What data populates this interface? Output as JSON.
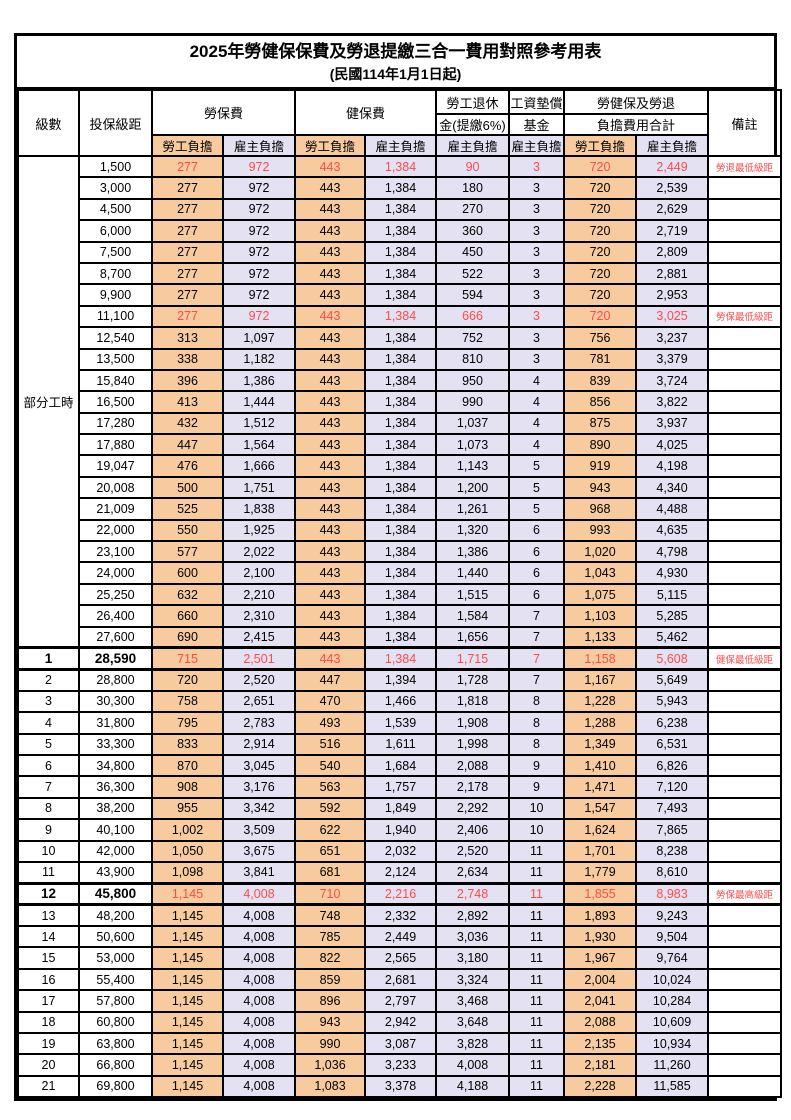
{
  "title": "2025年勞健保保費及勞退提繳三合一費用對照參考用表",
  "subtitle": "(民國114年1月1日起)",
  "colors": {
    "employee_bg": "#F8CB9E",
    "employer_bg": "#E4E2F2",
    "highlight_red": "#FF4A4A",
    "border": "#000000"
  },
  "table": {
    "header": {
      "level": "級數",
      "insured_range": "投保級距",
      "labor_fee": "勞保費",
      "health_fee": "健保費",
      "pension_line1": "勞工退休",
      "pension_line2": "金(提繳6%)",
      "wage_fund_line1": "工資墊償",
      "wage_fund_line2": "基金",
      "total_line1": "勞健保及勞退",
      "total_line2": "負擔費用合計",
      "remarks": "備註",
      "employee_share": "勞工負擔",
      "employer_share": "雇主負擔"
    },
    "part_time_label": "部分工時",
    "part_time_span": 23,
    "rows": [
      {
        "level": "",
        "salary": "1,500",
        "labor_emp": "277",
        "labor_er": "972",
        "health_emp": "443",
        "health_er": "1,384",
        "pension_er": "90",
        "fund_er": "3",
        "total_emp": "720",
        "total_er": "2,449",
        "note": "勞退最低級距",
        "hl": true,
        "em": false
      },
      {
        "level": "",
        "salary": "3,000",
        "labor_emp": "277",
        "labor_er": "972",
        "health_emp": "443",
        "health_er": "1,384",
        "pension_er": "180",
        "fund_er": "3",
        "total_emp": "720",
        "total_er": "2,539",
        "note": "",
        "hl": false,
        "em": false
      },
      {
        "level": "",
        "salary": "4,500",
        "labor_emp": "277",
        "labor_er": "972",
        "health_emp": "443",
        "health_er": "1,384",
        "pension_er": "270",
        "fund_er": "3",
        "total_emp": "720",
        "total_er": "2,629",
        "note": "",
        "hl": false,
        "em": false
      },
      {
        "level": "",
        "salary": "6,000",
        "labor_emp": "277",
        "labor_er": "972",
        "health_emp": "443",
        "health_er": "1,384",
        "pension_er": "360",
        "fund_er": "3",
        "total_emp": "720",
        "total_er": "2,719",
        "note": "",
        "hl": false,
        "em": false
      },
      {
        "level": "",
        "salary": "7,500",
        "labor_emp": "277",
        "labor_er": "972",
        "health_emp": "443",
        "health_er": "1,384",
        "pension_er": "450",
        "fund_er": "3",
        "total_emp": "720",
        "total_er": "2,809",
        "note": "",
        "hl": false,
        "em": false
      },
      {
        "level": "",
        "salary": "8,700",
        "labor_emp": "277",
        "labor_er": "972",
        "health_emp": "443",
        "health_er": "1,384",
        "pension_er": "522",
        "fund_er": "3",
        "total_emp": "720",
        "total_er": "2,881",
        "note": "",
        "hl": false,
        "em": false
      },
      {
        "level": "",
        "salary": "9,900",
        "labor_emp": "277",
        "labor_er": "972",
        "health_emp": "443",
        "health_er": "1,384",
        "pension_er": "594",
        "fund_er": "3",
        "total_emp": "720",
        "total_er": "2,953",
        "note": "",
        "hl": false,
        "em": false
      },
      {
        "level": "",
        "salary": "11,100",
        "labor_emp": "277",
        "labor_er": "972",
        "health_emp": "443",
        "health_er": "1,384",
        "pension_er": "666",
        "fund_er": "3",
        "total_emp": "720",
        "total_er": "3,025",
        "note": "勞保最低級距",
        "hl": true,
        "em": false
      },
      {
        "level": "",
        "salary": "12,540",
        "labor_emp": "313",
        "labor_er": "1,097",
        "health_emp": "443",
        "health_er": "1,384",
        "pension_er": "752",
        "fund_er": "3",
        "total_emp": "756",
        "total_er": "3,237",
        "note": "",
        "hl": false,
        "em": false
      },
      {
        "level": "",
        "salary": "13,500",
        "labor_emp": "338",
        "labor_er": "1,182",
        "health_emp": "443",
        "health_er": "1,384",
        "pension_er": "810",
        "fund_er": "3",
        "total_emp": "781",
        "total_er": "3,379",
        "note": "",
        "hl": false,
        "em": false
      },
      {
        "level": "",
        "salary": "15,840",
        "labor_emp": "396",
        "labor_er": "1,386",
        "health_emp": "443",
        "health_er": "1,384",
        "pension_er": "950",
        "fund_er": "4",
        "total_emp": "839",
        "total_er": "3,724",
        "note": "",
        "hl": false,
        "em": false
      },
      {
        "level": "",
        "salary": "16,500",
        "labor_emp": "413",
        "labor_er": "1,444",
        "health_emp": "443",
        "health_er": "1,384",
        "pension_er": "990",
        "fund_er": "4",
        "total_emp": "856",
        "total_er": "3,822",
        "note": "",
        "hl": false,
        "em": false
      },
      {
        "level": "",
        "salary": "17,280",
        "labor_emp": "432",
        "labor_er": "1,512",
        "health_emp": "443",
        "health_er": "1,384",
        "pension_er": "1,037",
        "fund_er": "4",
        "total_emp": "875",
        "total_er": "3,937",
        "note": "",
        "hl": false,
        "em": false
      },
      {
        "level": "",
        "salary": "17,880",
        "labor_emp": "447",
        "labor_er": "1,564",
        "health_emp": "443",
        "health_er": "1,384",
        "pension_er": "1,073",
        "fund_er": "4",
        "total_emp": "890",
        "total_er": "4,025",
        "note": "",
        "hl": false,
        "em": false
      },
      {
        "level": "",
        "salary": "19,047",
        "labor_emp": "476",
        "labor_er": "1,666",
        "health_emp": "443",
        "health_er": "1,384",
        "pension_er": "1,143",
        "fund_er": "5",
        "total_emp": "919",
        "total_er": "4,198",
        "note": "",
        "hl": false,
        "em": false
      },
      {
        "level": "",
        "salary": "20,008",
        "labor_emp": "500",
        "labor_er": "1,751",
        "health_emp": "443",
        "health_er": "1,384",
        "pension_er": "1,200",
        "fund_er": "5",
        "total_emp": "943",
        "total_er": "4,340",
        "note": "",
        "hl": false,
        "em": false
      },
      {
        "level": "",
        "salary": "21,009",
        "labor_emp": "525",
        "labor_er": "1,838",
        "health_emp": "443",
        "health_er": "1,384",
        "pension_er": "1,261",
        "fund_er": "5",
        "total_emp": "968",
        "total_er": "4,488",
        "note": "",
        "hl": false,
        "em": false
      },
      {
        "level": "",
        "salary": "22,000",
        "labor_emp": "550",
        "labor_er": "1,925",
        "health_emp": "443",
        "health_er": "1,384",
        "pension_er": "1,320",
        "fund_er": "6",
        "total_emp": "993",
        "total_er": "4,635",
        "note": "",
        "hl": false,
        "em": false
      },
      {
        "level": "",
        "salary": "23,100",
        "labor_emp": "577",
        "labor_er": "2,022",
        "health_emp": "443",
        "health_er": "1,384",
        "pension_er": "1,386",
        "fund_er": "6",
        "total_emp": "1,020",
        "total_er": "4,798",
        "note": "",
        "hl": false,
        "em": false
      },
      {
        "level": "",
        "salary": "24,000",
        "labor_emp": "600",
        "labor_er": "2,100",
        "health_emp": "443",
        "health_er": "1,384",
        "pension_er": "1,440",
        "fund_er": "6",
        "total_emp": "1,043",
        "total_er": "4,930",
        "note": "",
        "hl": false,
        "em": false
      },
      {
        "level": "",
        "salary": "25,250",
        "labor_emp": "632",
        "labor_er": "2,210",
        "health_emp": "443",
        "health_er": "1,384",
        "pension_er": "1,515",
        "fund_er": "6",
        "total_emp": "1,075",
        "total_er": "5,115",
        "note": "",
        "hl": false,
        "em": false
      },
      {
        "level": "",
        "salary": "26,400",
        "labor_emp": "660",
        "labor_er": "2,310",
        "health_emp": "443",
        "health_er": "1,384",
        "pension_er": "1,584",
        "fund_er": "7",
        "total_emp": "1,103",
        "total_er": "5,285",
        "note": "",
        "hl": false,
        "em": false
      },
      {
        "level": "",
        "salary": "27,600",
        "labor_emp": "690",
        "labor_er": "2,415",
        "health_emp": "443",
        "health_er": "1,384",
        "pension_er": "1,656",
        "fund_er": "7",
        "total_emp": "1,133",
        "total_er": "5,462",
        "note": "",
        "hl": false,
        "em": false
      },
      {
        "level": "1",
        "salary": "28,590",
        "labor_emp": "715",
        "labor_er": "2,501",
        "health_emp": "443",
        "health_er": "1,384",
        "pension_er": "1,715",
        "fund_er": "7",
        "total_emp": "1,158",
        "total_er": "5,608",
        "note": "健保最低級距",
        "hl": true,
        "em": true
      },
      {
        "level": "2",
        "salary": "28,800",
        "labor_emp": "720",
        "labor_er": "2,520",
        "health_emp": "447",
        "health_er": "1,394",
        "pension_er": "1,728",
        "fund_er": "7",
        "total_emp": "1,167",
        "total_er": "5,649",
        "note": "",
        "hl": false,
        "em": false
      },
      {
        "level": "3",
        "salary": "30,300",
        "labor_emp": "758",
        "labor_er": "2,651",
        "health_emp": "470",
        "health_er": "1,466",
        "pension_er": "1,818",
        "fund_er": "8",
        "total_emp": "1,228",
        "total_er": "5,943",
        "note": "",
        "hl": false,
        "em": false
      },
      {
        "level": "4",
        "salary": "31,800",
        "labor_emp": "795",
        "labor_er": "2,783",
        "health_emp": "493",
        "health_er": "1,539",
        "pension_er": "1,908",
        "fund_er": "8",
        "total_emp": "1,288",
        "total_er": "6,238",
        "note": "",
        "hl": false,
        "em": false
      },
      {
        "level": "5",
        "salary": "33,300",
        "labor_emp": "833",
        "labor_er": "2,914",
        "health_emp": "516",
        "health_er": "1,611",
        "pension_er": "1,998",
        "fund_er": "8",
        "total_emp": "1,349",
        "total_er": "6,531",
        "note": "",
        "hl": false,
        "em": false
      },
      {
        "level": "6",
        "salary": "34,800",
        "labor_emp": "870",
        "labor_er": "3,045",
        "health_emp": "540",
        "health_er": "1,684",
        "pension_er": "2,088",
        "fund_er": "9",
        "total_emp": "1,410",
        "total_er": "6,826",
        "note": "",
        "hl": false,
        "em": false
      },
      {
        "level": "7",
        "salary": "36,300",
        "labor_emp": "908",
        "labor_er": "3,176",
        "health_emp": "563",
        "health_er": "1,757",
        "pension_er": "2,178",
        "fund_er": "9",
        "total_emp": "1,471",
        "total_er": "7,120",
        "note": "",
        "hl": false,
        "em": false
      },
      {
        "level": "8",
        "salary": "38,200",
        "labor_emp": "955",
        "labor_er": "3,342",
        "health_emp": "592",
        "health_er": "1,849",
        "pension_er": "2,292",
        "fund_er": "10",
        "total_emp": "1,547",
        "total_er": "7,493",
        "note": "",
        "hl": false,
        "em": false
      },
      {
        "level": "9",
        "salary": "40,100",
        "labor_emp": "1,002",
        "labor_er": "3,509",
        "health_emp": "622",
        "health_er": "1,940",
        "pension_er": "2,406",
        "fund_er": "10",
        "total_emp": "1,624",
        "total_er": "7,865",
        "note": "",
        "hl": false,
        "em": false
      },
      {
        "level": "10",
        "salary": "42,000",
        "labor_emp": "1,050",
        "labor_er": "3,675",
        "health_emp": "651",
        "health_er": "2,032",
        "pension_er": "2,520",
        "fund_er": "11",
        "total_emp": "1,701",
        "total_er": "8,238",
        "note": "",
        "hl": false,
        "em": false
      },
      {
        "level": "11",
        "salary": "43,900",
        "labor_emp": "1,098",
        "labor_er": "3,841",
        "health_emp": "681",
        "health_er": "2,124",
        "pension_er": "2,634",
        "fund_er": "11",
        "total_emp": "1,779",
        "total_er": "8,610",
        "note": "",
        "hl": false,
        "em": false
      },
      {
        "level": "12",
        "salary": "45,800",
        "labor_emp": "1,145",
        "labor_er": "4,008",
        "health_emp": "710",
        "health_er": "2,216",
        "pension_er": "2,748",
        "fund_er": "11",
        "total_emp": "1,855",
        "total_er": "8,983",
        "note": "勞保最高級距",
        "hl": true,
        "em": true
      },
      {
        "level": "13",
        "salary": "48,200",
        "labor_emp": "1,145",
        "labor_er": "4,008",
        "health_emp": "748",
        "health_er": "2,332",
        "pension_er": "2,892",
        "fund_er": "11",
        "total_emp": "1,893",
        "total_er": "9,243",
        "note": "",
        "hl": false,
        "em": false
      },
      {
        "level": "14",
        "salary": "50,600",
        "labor_emp": "1,145",
        "labor_er": "4,008",
        "health_emp": "785",
        "health_er": "2,449",
        "pension_er": "3,036",
        "fund_er": "11",
        "total_emp": "1,930",
        "total_er": "9,504",
        "note": "",
        "hl": false,
        "em": false
      },
      {
        "level": "15",
        "salary": "53,000",
        "labor_emp": "1,145",
        "labor_er": "4,008",
        "health_emp": "822",
        "health_er": "2,565",
        "pension_er": "3,180",
        "fund_er": "11",
        "total_emp": "1,967",
        "total_er": "9,764",
        "note": "",
        "hl": false,
        "em": false
      },
      {
        "level": "16",
        "salary": "55,400",
        "labor_emp": "1,145",
        "labor_er": "4,008",
        "health_emp": "859",
        "health_er": "2,681",
        "pension_er": "3,324",
        "fund_er": "11",
        "total_emp": "2,004",
        "total_er": "10,024",
        "note": "",
        "hl": false,
        "em": false
      },
      {
        "level": "17",
        "salary": "57,800",
        "labor_emp": "1,145",
        "labor_er": "4,008",
        "health_emp": "896",
        "health_er": "2,797",
        "pension_er": "3,468",
        "fund_er": "11",
        "total_emp": "2,041",
        "total_er": "10,284",
        "note": "",
        "hl": false,
        "em": false
      },
      {
        "level": "18",
        "salary": "60,800",
        "labor_emp": "1,145",
        "labor_er": "4,008",
        "health_emp": "943",
        "health_er": "2,942",
        "pension_er": "3,648",
        "fund_er": "11",
        "total_emp": "2,088",
        "total_er": "10,609",
        "note": "",
        "hl": false,
        "em": false
      },
      {
        "level": "19",
        "salary": "63,800",
        "labor_emp": "1,145",
        "labor_er": "4,008",
        "health_emp": "990",
        "health_er": "3,087",
        "pension_er": "3,828",
        "fund_er": "11",
        "total_emp": "2,135",
        "total_er": "10,934",
        "note": "",
        "hl": false,
        "em": false
      },
      {
        "level": "20",
        "salary": "66,800",
        "labor_emp": "1,145",
        "labor_er": "4,008",
        "health_emp": "1,036",
        "health_er": "3,233",
        "pension_er": "4,008",
        "fund_er": "11",
        "total_emp": "2,181",
        "total_er": "11,260",
        "note": "",
        "hl": false,
        "em": false
      },
      {
        "level": "21",
        "salary": "69,800",
        "labor_emp": "1,145",
        "labor_er": "4,008",
        "health_emp": "1,083",
        "health_er": "3,378",
        "pension_er": "4,188",
        "fund_er": "11",
        "total_emp": "2,228",
        "total_er": "11,585",
        "note": "",
        "hl": false,
        "em": false
      }
    ]
  }
}
